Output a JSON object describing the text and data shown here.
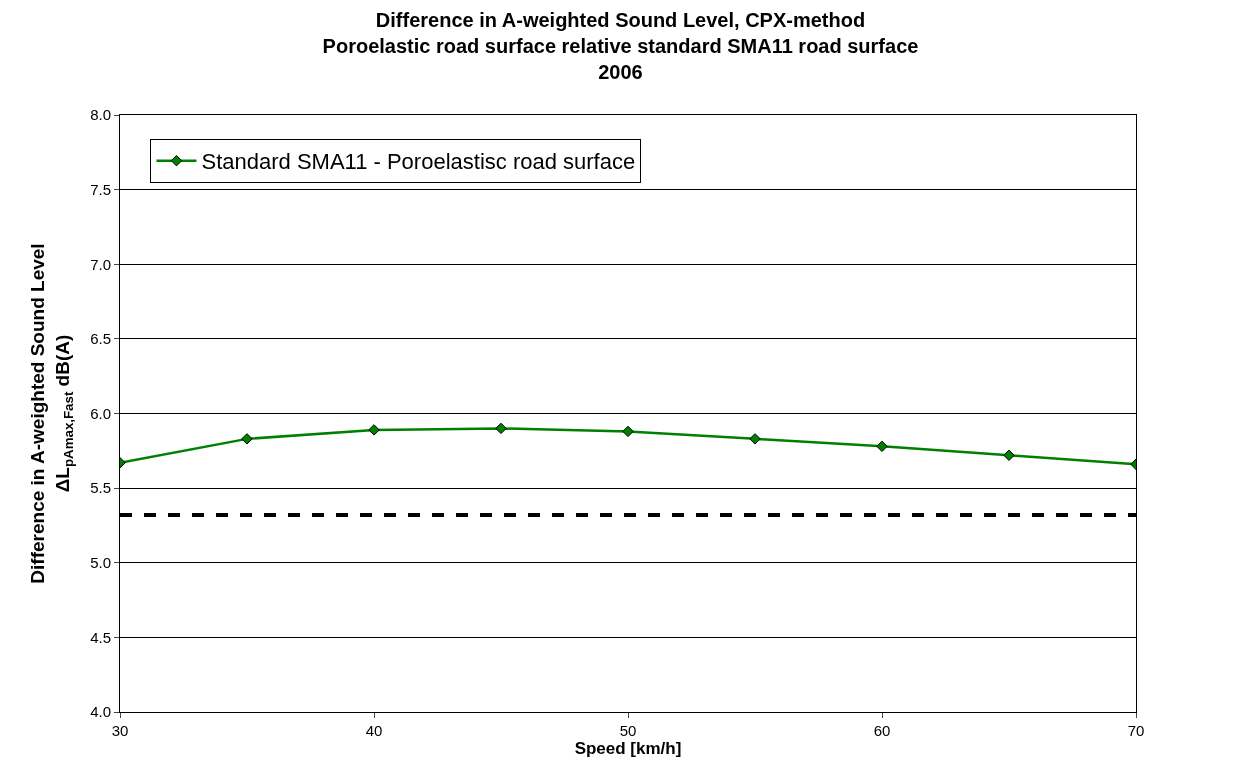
{
  "chart_data": {
    "type": "line",
    "title": "Difference in A-weighted Sound Level, CPX-method\nPoroelastic road surface relative standard SMA11 road surface\n2006",
    "xlabel": "Speed [km/h]",
    "ylabel": "Difference in A-weighted Sound Level\nΔL$_{pAmax,Fast}$ dB(A)",
    "x": [
      30,
      35,
      40,
      45,
      50,
      55,
      60,
      65,
      70
    ],
    "series": [
      {
        "name": "Standard SMA11 - Poroelastisc road surface",
        "color": "#008000",
        "values": [
          5.67,
          5.83,
          5.89,
          5.9,
          5.88,
          5.83,
          5.78,
          5.72,
          5.66
        ]
      }
    ],
    "xlim": [
      30,
      70
    ],
    "xticks": [
      30,
      40,
      50,
      60,
      70
    ],
    "ylim": [
      4.0,
      8.0
    ],
    "yticks": [
      {
        "value": 4,
        "label": "4.0"
      },
      4.5,
      {
        "value": 5,
        "label": "5.0"
      },
      5.5,
      {
        "value": 6,
        "label": "6.0"
      },
      6.5,
      {
        "value": 7,
        "label": "7.0"
      },
      7.5,
      {
        "value": 8,
        "label": "8.0"
      }
    ],
    "ref_lines": [
      {
        "axis": "y",
        "value": 5.32,
        "color": "#000000",
        "line_style": "dashed"
      }
    ],
    "grid": "y",
    "legend": "top left",
    "marker": "diamond",
    "line_style": "solid"
  }
}
